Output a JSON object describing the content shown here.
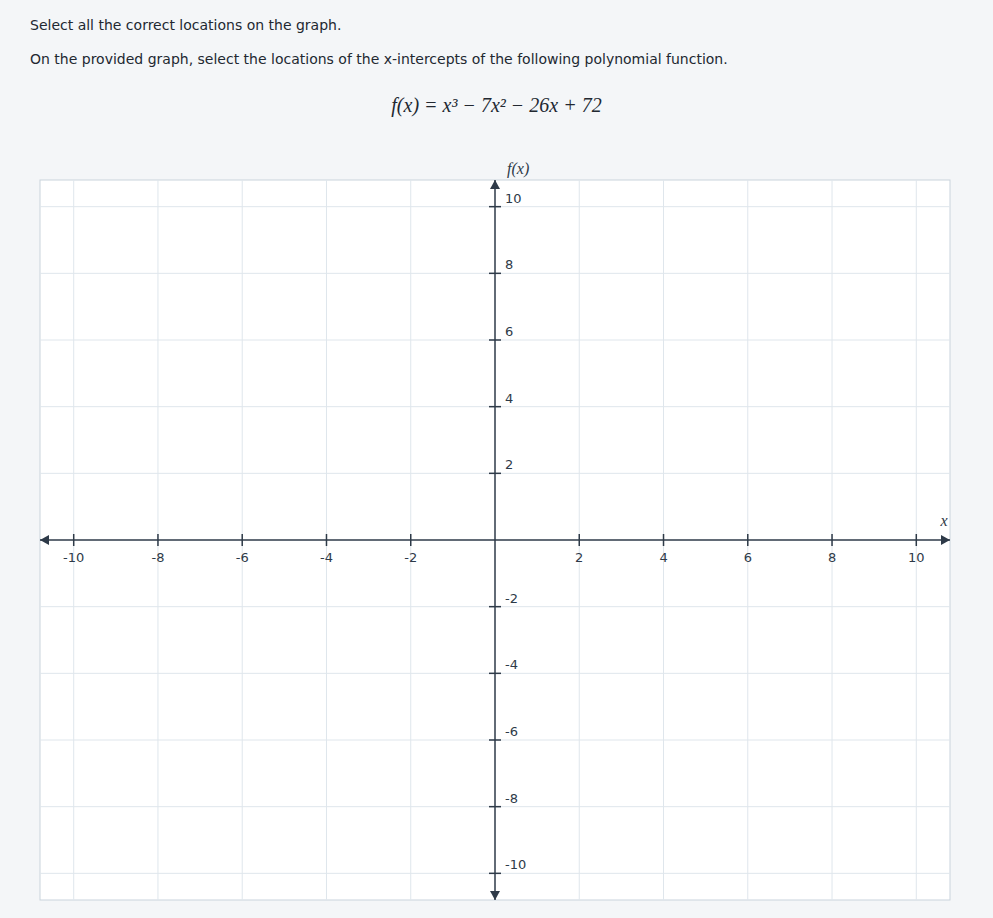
{
  "chart_data": {
    "type": "graph",
    "title": "Select all the correct locations on the graph.",
    "subtitle": "On the provided graph, select the locations of the x-intercepts of the following polynomial function.",
    "annotations": [
      "f(x) = x³ − 7x² − 26x + 72"
    ],
    "xlabel": "x",
    "ylabel": "f(x)",
    "xlim": [
      -10.8,
      10.8
    ],
    "ylim": [
      -10.8,
      10.8
    ],
    "xticks": [
      -10,
      -8,
      -6,
      -4,
      -2,
      2,
      4,
      6,
      8,
      10
    ],
    "yticks": [
      -10,
      -8,
      -6,
      -4,
      -2,
      2,
      4,
      6,
      8,
      10
    ],
    "grid": true
  }
}
